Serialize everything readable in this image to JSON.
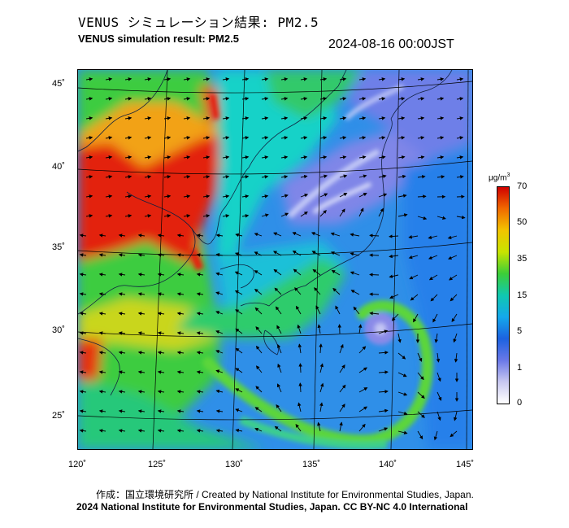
{
  "header": {
    "title_jp": "VENUS シミュレーション結果: PM2.5",
    "title_en": "VENUS simulation result: PM2.5",
    "timestamp": "2024-08-16 00:00JST"
  },
  "map": {
    "lat_labels": [
      "45˚",
      "40˚",
      "35˚",
      "30˚",
      "25˚"
    ],
    "lon_labels": [
      "120˚",
      "125˚",
      "130˚",
      "135˚",
      "140˚",
      "145˚"
    ],
    "colors": {
      "ocean_base": "#2f8fe8",
      "high": "#e3200f",
      "mid": "#22c060",
      "low": "#6f9af0"
    }
  },
  "colorbar": {
    "unit_main": "μg/m",
    "unit_sup": "3",
    "ticks": [
      "70",
      "50",
      "35",
      "15",
      "5",
      "1",
      "0"
    ],
    "colors": [
      "#d10000",
      "#f06a00",
      "#f2c400",
      "#c8e400",
      "#3cce38",
      "#10c8b0",
      "#14a8ec",
      "#1c62e0",
      "#6a78e8",
      "#c8c8f0",
      "#ffffff"
    ]
  },
  "footer": {
    "credit": "作成：国立環境研究所 / Created by National Institute for Environmental Studies, Japan.",
    "license": "2024 National Institute for Environmental Studies, Japan. CC BY-NC 4.0 International"
  }
}
